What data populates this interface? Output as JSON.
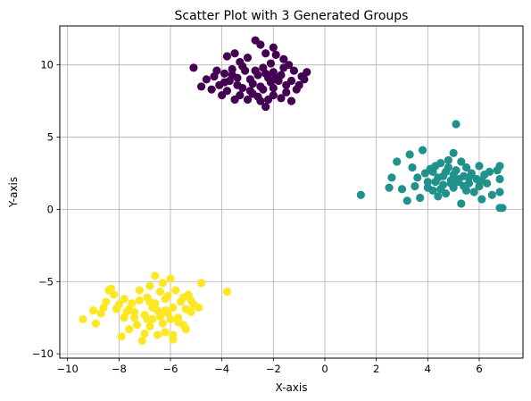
{
  "chart_data": {
    "type": "scatter",
    "title": "Scatter Plot with 3 Generated Groups",
    "xlabel": "X-axis",
    "ylabel": "Y-axis",
    "xlim": [
      -10.3,
      7.7
    ],
    "ylim": [
      -10.3,
      12.7
    ],
    "xticks": [
      -10,
      -8,
      -6,
      -4,
      -2,
      0,
      2,
      4,
      6
    ],
    "xtick_labels": [
      "−10",
      "−8",
      "−6",
      "−4",
      "−2",
      "0",
      "2",
      "4",
      "6"
    ],
    "yticks": [
      -10,
      -5,
      0,
      5,
      10
    ],
    "ytick_labels": [
      "−10",
      "−5",
      "0",
      "5",
      "10"
    ],
    "grid": true,
    "series": [
      {
        "color": "#440154",
        "points": [
          [
            -5.1,
            9.8
          ],
          [
            -3.8,
            10.6
          ],
          [
            -3.5,
            10.8
          ],
          [
            -3.3,
            10.2
          ],
          [
            -3.0,
            10.5
          ],
          [
            -2.7,
            11.7
          ],
          [
            -2.5,
            11.4
          ],
          [
            -2.3,
            10.8
          ],
          [
            -2.0,
            11.2
          ],
          [
            -1.9,
            10.7
          ],
          [
            -1.6,
            10.4
          ],
          [
            -1.4,
            10.0
          ],
          [
            -1.2,
            9.6
          ],
          [
            -0.9,
            9.2
          ],
          [
            -0.7,
            9.5
          ],
          [
            -4.6,
            9.0
          ],
          [
            -4.3,
            9.2
          ],
          [
            -4.1,
            8.6
          ],
          [
            -3.9,
            9.4
          ],
          [
            -3.7,
            8.9
          ],
          [
            -3.6,
            9.7
          ],
          [
            -3.4,
            9.1
          ],
          [
            -3.2,
            8.4
          ],
          [
            -3.1,
            9.6
          ],
          [
            -2.9,
            9.0
          ],
          [
            -2.8,
            8.7
          ],
          [
            -2.6,
            9.3
          ],
          [
            -2.5,
            8.5
          ],
          [
            -2.4,
            9.8
          ],
          [
            -2.2,
            9.1
          ],
          [
            -2.1,
            8.8
          ],
          [
            -2.0,
            9.5
          ],
          [
            -1.8,
            8.9
          ],
          [
            -1.7,
            9.3
          ],
          [
            -1.5,
            8.6
          ],
          [
            -1.3,
            8.9
          ],
          [
            -1.1,
            8.3
          ],
          [
            -1.0,
            8.6
          ],
          [
            -0.8,
            9.0
          ],
          [
            -4.4,
            8.3
          ],
          [
            -4.0,
            7.9
          ],
          [
            -3.8,
            8.2
          ],
          [
            -3.5,
            7.6
          ],
          [
            -3.3,
            7.9
          ],
          [
            -3.0,
            7.6
          ],
          [
            -2.8,
            8.0
          ],
          [
            -2.5,
            7.5
          ],
          [
            -2.3,
            7.1
          ],
          [
            -2.2,
            7.6
          ],
          [
            -2.0,
            7.9
          ],
          [
            -1.7,
            7.7
          ],
          [
            -1.5,
            8.1
          ],
          [
            -1.3,
            7.5
          ],
          [
            -3.9,
            8.8
          ],
          [
            -3.6,
            9.3
          ],
          [
            -3.2,
            9.9
          ],
          [
            -2.9,
            8.2
          ],
          [
            -2.7,
            9.6
          ],
          [
            -2.4,
            8.3
          ],
          [
            -2.3,
            9.4
          ],
          [
            -2.1,
            10.1
          ],
          [
            -1.9,
            9.1
          ],
          [
            -1.6,
            9.8
          ],
          [
            -3.4,
            8.6
          ],
          [
            -2.6,
            7.8
          ],
          [
            -2.0,
            8.4
          ],
          [
            -4.2,
            9.6
          ],
          [
            -4.8,
            8.5
          ]
        ]
      },
      {
        "color": "#21918c",
        "points": [
          [
            1.4,
            1.0
          ],
          [
            2.5,
            1.5
          ],
          [
            2.6,
            2.2
          ],
          [
            2.8,
            3.3
          ],
          [
            3.0,
            1.4
          ],
          [
            3.2,
            0.6
          ],
          [
            3.3,
            3.8
          ],
          [
            3.4,
            2.9
          ],
          [
            3.5,
            1.6
          ],
          [
            3.7,
            0.8
          ],
          [
            3.8,
            4.1
          ],
          [
            3.9,
            2.5
          ],
          [
            4.0,
            1.9
          ],
          [
            4.1,
            2.8
          ],
          [
            4.2,
            1.3
          ],
          [
            4.3,
            3.0
          ],
          [
            4.4,
            0.9
          ],
          [
            4.4,
            2.2
          ],
          [
            4.5,
            3.2
          ],
          [
            4.6,
            1.7
          ],
          [
            4.7,
            2.6
          ],
          [
            4.7,
            1.1
          ],
          [
            4.8,
            3.4
          ],
          [
            4.9,
            2.0
          ],
          [
            5.0,
            3.9
          ],
          [
            5.0,
            1.5
          ],
          [
            5.1,
            2.7
          ],
          [
            5.1,
            5.9
          ],
          [
            5.2,
            1.9
          ],
          [
            5.3,
            0.4
          ],
          [
            5.3,
            3.3
          ],
          [
            5.4,
            2.3
          ],
          [
            5.5,
            1.3
          ],
          [
            5.5,
            2.9
          ],
          [
            5.6,
            1.8
          ],
          [
            5.7,
            2.5
          ],
          [
            5.8,
            1.2
          ],
          [
            5.9,
            2.1
          ],
          [
            6.0,
            3.0
          ],
          [
            6.0,
            1.6
          ],
          [
            6.1,
            0.7
          ],
          [
            6.2,
            2.4
          ],
          [
            6.3,
            1.8
          ],
          [
            6.4,
            2.6
          ],
          [
            6.5,
            1.0
          ],
          [
            6.7,
            2.7
          ],
          [
            6.8,
            3.0
          ],
          [
            6.8,
            1.2
          ],
          [
            6.8,
            0.1
          ],
          [
            6.9,
            0.1
          ],
          [
            6.8,
            2.1
          ],
          [
            4.2,
            2.6
          ],
          [
            4.6,
            2.3
          ],
          [
            4.9,
            1.8
          ],
          [
            5.2,
            2.1
          ],
          [
            5.6,
            2.2
          ],
          [
            4.0,
            1.5
          ],
          [
            4.3,
            1.9
          ],
          [
            4.8,
            2.9
          ],
          [
            5.4,
            1.6
          ],
          [
            3.6,
            2.2
          ],
          [
            6.1,
            2.0
          ],
          [
            4.5,
            1.4
          ],
          [
            5.0,
            2.4
          ]
        ]
      },
      {
        "color": "#fde725",
        "points": [
          [
            -9.4,
            -7.6
          ],
          [
            -9.0,
            -7.0
          ],
          [
            -8.9,
            -7.9
          ],
          [
            -8.7,
            -7.2
          ],
          [
            -8.5,
            -6.4
          ],
          [
            -8.3,
            -5.5
          ],
          [
            -8.2,
            -5.9
          ],
          [
            -8.0,
            -6.6
          ],
          [
            -7.9,
            -8.8
          ],
          [
            -7.8,
            -6.2
          ],
          [
            -7.7,
            -7.1
          ],
          [
            -7.6,
            -8.3
          ],
          [
            -7.5,
            -6.5
          ],
          [
            -7.4,
            -7.5
          ],
          [
            -7.3,
            -8.0
          ],
          [
            -7.2,
            -6.3
          ],
          [
            -7.1,
            -9.1
          ],
          [
            -7.0,
            -7.3
          ],
          [
            -6.9,
            -6.1
          ],
          [
            -6.8,
            -8.1
          ],
          [
            -6.8,
            -5.3
          ],
          [
            -6.7,
            -7.6
          ],
          [
            -6.6,
            -6.5
          ],
          [
            -6.5,
            -8.7
          ],
          [
            -6.5,
            -7.0
          ],
          [
            -6.4,
            -5.7
          ],
          [
            -6.3,
            -7.9
          ],
          [
            -6.2,
            -6.2
          ],
          [
            -6.2,
            -8.5
          ],
          [
            -6.1,
            -7.2
          ],
          [
            -6.0,
            -4.8
          ],
          [
            -5.9,
            -6.8
          ],
          [
            -5.8,
            -5.6
          ],
          [
            -5.7,
            -7.5
          ],
          [
            -5.6,
            -6.4
          ],
          [
            -5.5,
            -8.0
          ],
          [
            -5.4,
            -6.9
          ],
          [
            -5.3,
            -5.9
          ],
          [
            -5.2,
            -7.1
          ],
          [
            -5.1,
            -6.6
          ],
          [
            -4.9,
            -6.8
          ],
          [
            -4.8,
            -5.1
          ],
          [
            -3.8,
            -5.7
          ],
          [
            -5.9,
            -9.0
          ],
          [
            -7.8,
            -7.5
          ],
          [
            -8.1,
            -6.9
          ],
          [
            -6.6,
            -4.6
          ],
          [
            -7.0,
            -8.6
          ],
          [
            -6.3,
            -5.1
          ],
          [
            -5.9,
            -8.7
          ],
          [
            -5.4,
            -8.3
          ],
          [
            -6.9,
            -7.6
          ],
          [
            -6.1,
            -6.0
          ],
          [
            -7.4,
            -7.1
          ],
          [
            -6.7,
            -6.8
          ],
          [
            -5.7,
            -7.8
          ],
          [
            -8.6,
            -6.8
          ],
          [
            -7.2,
            -5.6
          ],
          [
            -6.4,
            -7.4
          ],
          [
            -5.5,
            -6.1
          ],
          [
            -6.0,
            -7.6
          ],
          [
            -7.6,
            -6.9
          ],
          [
            -6.8,
            -6.4
          ],
          [
            -6.2,
            -7.0
          ],
          [
            -8.4,
            -5.6
          ],
          [
            -5.2,
            -6.3
          ]
        ]
      }
    ]
  }
}
